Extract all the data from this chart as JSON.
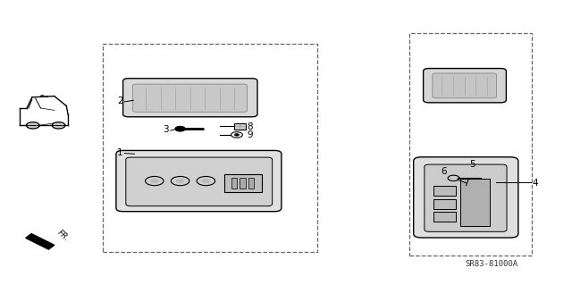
{
  "bg_color": "#ffffff",
  "line_color": "#000000",
  "part_number_text": "SR83-81000A",
  "fig_width": 6.4,
  "fig_height": 3.19,
  "dpi": 100
}
